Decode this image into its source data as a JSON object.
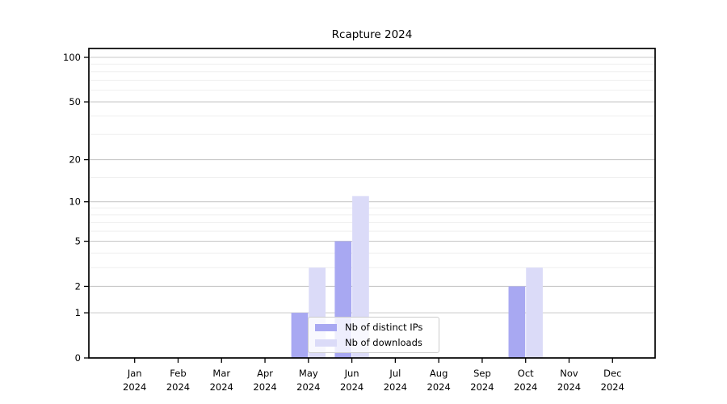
{
  "chart_data": {
    "type": "bar",
    "title": "Rcapture 2024",
    "categories": [
      "Jan 2024",
      "Feb 2024",
      "Mar 2024",
      "Apr 2024",
      "May 2024",
      "Jun 2024",
      "Jul 2024",
      "Aug 2024",
      "Sep 2024",
      "Oct 2024",
      "Nov 2024",
      "Dec 2024"
    ],
    "series": [
      {
        "name": "Nb of distinct IPs",
        "color": "#a8a8f2",
        "values": [
          0,
          0,
          0,
          0,
          1,
          5,
          0,
          0,
          0,
          2,
          0,
          0
        ]
      },
      {
        "name": "Nb of downloads",
        "color": "#dbdbf8",
        "values": [
          0,
          0,
          0,
          0,
          3,
          11,
          0,
          0,
          0,
          3,
          0,
          0
        ]
      }
    ],
    "yscale": "log10(1+x)",
    "ylim": [
      0,
      115
    ],
    "yticks": [
      0,
      1,
      2,
      5,
      10,
      20,
      50,
      100
    ],
    "minor_gridlines": [
      3,
      4,
      6,
      7,
      8,
      9,
      15,
      30,
      40,
      60,
      70,
      80,
      90
    ],
    "grid": "horizontal",
    "legend_position": "bottom-center-inside",
    "colors": {
      "major_grid": "#c9c9c9",
      "minor_grid": "#efefef",
      "axis": "#000000",
      "text": "#000000",
      "legend_border": "#cccccc",
      "legend_bg": "#ffffff",
      "background": "#ffffff"
    }
  }
}
